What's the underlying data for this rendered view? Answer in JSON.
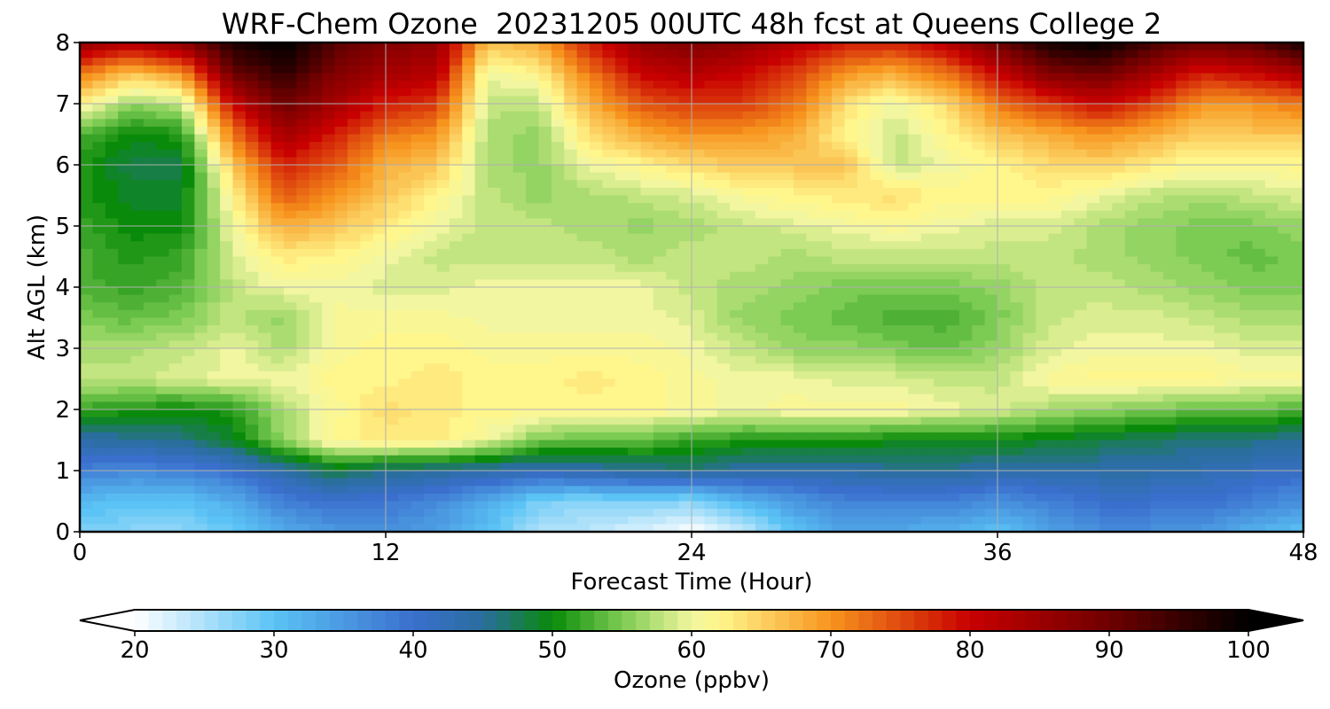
{
  "chart_data": {
    "type": "heatmap",
    "title": "WRF-Chem Ozone  20231205 00UTC 48h fcst at Queens College 2",
    "xlabel": "Forecast Time (Hour)",
    "ylabel": "Alt AGL (km)",
    "xlim": [
      0,
      48
    ],
    "ylim": [
      0,
      8
    ],
    "x_ticks": [
      0,
      12,
      24,
      36,
      48
    ],
    "y_ticks": [
      0,
      1,
      2,
      3,
      4,
      5,
      6,
      7,
      8
    ],
    "grid": true,
    "colorbar": {
      "label": "Ozone  (ppbv)",
      "range": [
        20,
        100
      ],
      "ticks": [
        20,
        30,
        40,
        50,
        60,
        70,
        80,
        90,
        100
      ],
      "extend": "both",
      "color_stops": [
        {
          "value": 20,
          "color": "#ffffff"
        },
        {
          "value": 30,
          "color": "#5bc3f5"
        },
        {
          "value": 40,
          "color": "#3a6fcd"
        },
        {
          "value": 45,
          "color": "#2a6e9e"
        },
        {
          "value": 50,
          "color": "#0a8a0a"
        },
        {
          "value": 55,
          "color": "#7ccb52"
        },
        {
          "value": 60,
          "color": "#f2f6a0"
        },
        {
          "value": 62,
          "color": "#fff68c"
        },
        {
          "value": 70,
          "color": "#f7941d"
        },
        {
          "value": 80,
          "color": "#c80000"
        },
        {
          "value": 90,
          "color": "#6e0000"
        },
        {
          "value": 100,
          "color": "#000000"
        }
      ]
    },
    "x": [
      0,
      2,
      4,
      6,
      8,
      10,
      12,
      14,
      16,
      18,
      20,
      22,
      24,
      26,
      28,
      30,
      32,
      34,
      36,
      38,
      40,
      42,
      44,
      46,
      48
    ],
    "y": [
      0,
      0.5,
      1,
      1.5,
      2,
      2.5,
      3,
      3.5,
      4,
      4.5,
      5,
      5.5,
      6,
      6.5,
      7,
      7.5,
      8
    ],
    "z": [
      [
        28,
        27,
        27,
        29,
        33,
        35,
        36,
        34,
        30,
        25,
        24,
        22,
        20,
        23,
        30,
        34,
        33,
        32,
        30,
        34,
        36,
        36,
        35,
        32,
        30
      ],
      [
        31,
        30,
        30,
        33,
        38,
        40,
        39,
        37,
        33,
        28,
        27,
        28,
        27,
        32,
        35,
        38,
        38,
        38,
        36,
        38,
        40,
        40,
        40,
        38,
        36
      ],
      [
        38,
        37,
        38,
        40,
        44,
        48,
        46,
        45,
        44,
        43,
        44,
        45,
        46,
        44,
        44,
        44,
        45,
        45,
        44,
        44,
        44,
        44,
        43,
        42,
        41
      ],
      [
        44,
        45,
        46,
        49,
        56,
        62,
        63,
        63,
        60,
        55,
        54,
        54,
        52,
        51,
        51,
        51,
        50,
        50,
        50,
        49,
        48,
        47,
        46,
        46,
        45
      ],
      [
        52,
        51,
        50,
        51,
        57,
        61,
        64,
        63,
        62,
        62,
        62,
        62,
        61,
        60,
        61,
        61,
        61,
        60,
        59,
        57,
        56,
        55,
        54,
        54,
        53
      ],
      [
        58,
        58,
        59,
        60,
        60,
        62,
        62,
        63,
        62,
        62,
        63,
        62,
        61,
        60,
        60,
        59,
        59,
        58,
        58,
        61,
        62,
        62,
        62,
        61,
        61
      ],
      [
        57,
        57,
        58,
        60,
        57,
        61,
        62,
        62,
        61,
        61,
        61,
        61,
        60,
        58,
        56,
        56,
        55,
        54,
        56,
        59,
        60,
        60,
        60,
        59,
        59
      ],
      [
        55,
        54,
        55,
        58,
        56,
        61,
        61,
        61,
        60,
        60,
        60,
        60,
        59,
        56,
        55,
        54,
        53,
        53,
        55,
        58,
        59,
        59,
        58,
        57,
        57
      ],
      [
        53,
        52,
        53,
        58,
        60,
        60,
        59,
        59,
        60,
        60,
        60,
        60,
        58,
        57,
        56,
        55,
        55,
        55,
        56,
        58,
        58,
        57,
        56,
        55,
        55
      ],
      [
        53,
        51,
        52,
        59,
        63,
        62,
        60,
        58,
        58,
        58,
        58,
        57,
        58,
        58,
        57,
        58,
        58,
        58,
        58,
        58,
        57,
        56,
        55,
        54,
        55
      ],
      [
        52,
        50,
        50,
        60,
        68,
        66,
        63,
        60,
        58,
        58,
        57,
        56,
        57,
        58,
        59,
        60,
        61,
        60,
        59,
        59,
        57,
        56,
        55,
        55,
        56
      ],
      [
        51,
        49,
        49,
        62,
        74,
        70,
        66,
        62,
        58,
        56,
        57,
        58,
        59,
        61,
        62,
        63,
        64,
        62,
        62,
        62,
        60,
        58,
        57,
        58,
        59
      ],
      [
        51,
        48,
        48,
        66,
        78,
        74,
        68,
        66,
        57,
        56,
        60,
        62,
        64,
        66,
        66,
        66,
        58,
        60,
        62,
        64,
        65,
        63,
        61,
        61,
        62
      ],
      [
        53,
        50,
        51,
        72,
        84,
        78,
        72,
        70,
        57,
        56,
        64,
        68,
        70,
        70,
        68,
        62,
        58,
        62,
        66,
        68,
        70,
        68,
        65,
        66,
        66
      ],
      [
        62,
        56,
        58,
        80,
        90,
        84,
        78,
        76,
        58,
        58,
        68,
        74,
        76,
        76,
        72,
        64,
        60,
        64,
        72,
        76,
        80,
        76,
        70,
        70,
        72
      ],
      [
        72,
        66,
        70,
        90,
        96,
        88,
        84,
        82,
        60,
        62,
        72,
        80,
        82,
        80,
        76,
        70,
        68,
        72,
        80,
        88,
        90,
        84,
        78,
        80,
        84
      ],
      [
        86,
        82,
        86,
        98,
        100,
        92,
        88,
        86,
        66,
        68,
        78,
        86,
        88,
        86,
        82,
        78,
        78,
        82,
        90,
        98,
        100,
        94,
        90,
        92,
        98
      ]
    ]
  }
}
